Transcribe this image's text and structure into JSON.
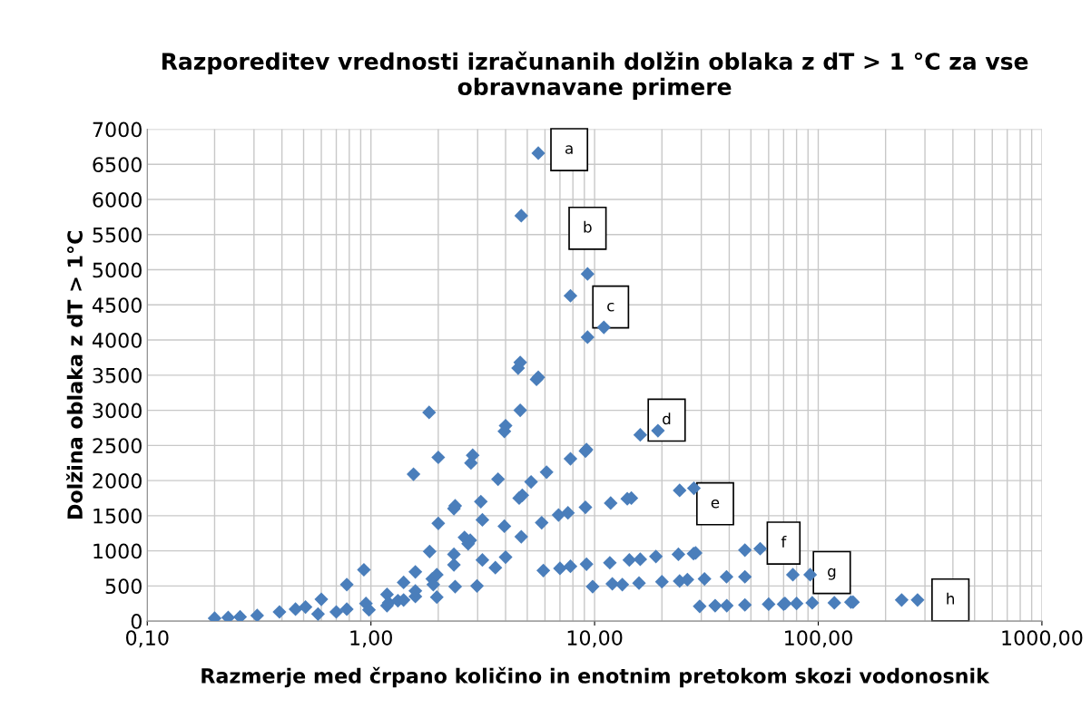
{
  "chart_data": {
    "type": "scatter",
    "title": "Razporeditev vrednosti izračunanih dolžin oblaka z dT > 1 °C za vse obravnavane primere",
    "xlabel": "Razmerje med črpano količino in enotnim pretokom skozi vodonosnik",
    "ylabel": "Dolžina oblaka z dT > 1°C",
    "log": "x",
    "grid": true,
    "marker": "diamond",
    "legend": false,
    "xlim": [
      0.1,
      1000
    ],
    "xticks": [
      {
        "value": 0.1,
        "label": "0,10"
      },
      {
        "value": 1,
        "label": "1,00"
      },
      {
        "value": 10,
        "label": "10,00"
      },
      {
        "value": 100,
        "label": "100,00"
      },
      {
        "value": 1000,
        "label": "1000,00"
      }
    ],
    "ylim": [
      0,
      7000
    ],
    "yticks": [
      0,
      500,
      1000,
      1500,
      2000,
      2500,
      3000,
      3500,
      4000,
      4500,
      5000,
      5500,
      6000,
      6500,
      7000
    ],
    "series": [
      {
        "color": "#4a7ebb",
        "x": [
          0.2,
          0.23,
          0.26,
          0.31,
          0.39,
          0.46,
          0.51,
          0.58,
          0.6,
          0.7,
          0.78,
          0.78,
          0.93,
          0.95,
          0.98,
          1.18,
          1.18,
          1.2,
          1.32,
          1.4,
          1.4,
          1.58,
          1.58,
          1.58,
          1.55,
          1.82,
          1.83,
          1.88,
          1.9,
          1.97,
          1.97,
          2.0,
          2.0,
          2.35,
          2.35,
          2.35,
          2.38,
          2.38,
          2.62,
          2.78,
          2.8,
          2.85,
          2.72,
          2.98,
          3.1,
          3.15,
          3.15,
          3.6,
          3.7,
          3.95,
          4.0,
          3.95,
          4.0,
          4.55,
          4.65,
          4.7,
          4.65,
          4.6,
          4.75,
          4.7,
          5.2,
          5.5,
          5.6,
          5.6,
          5.8,
          5.9,
          6.1,
          6.9,
          7.0,
          7.6,
          7.8,
          7.8,
          7.8,
          9.1,
          9.1,
          9.2,
          9.2,
          9.3,
          9.3,
          9.8,
          11,
          11.7,
          11.8,
          12,
          13.3,
          14,
          14.3,
          14.6,
          15.8,
          16,
          16,
          18.8,
          19.2,
          20,
          23.7,
          24,
          24,
          26,
          27.7,
          27.8,
          28.3,
          29.5,
          31,
          34.6,
          38.9,
          39,
          47,
          47,
          47,
          55,
          60,
          70,
          71,
          77,
          80,
          92,
          94,
          118,
          140,
          143,
          236,
          278
        ],
        "values": [
          40,
          50,
          60,
          80,
          130,
          170,
          200,
          100,
          310,
          130,
          170,
          520,
          730,
          250,
          160,
          380,
          220,
          260,
          290,
          300,
          550,
          350,
          430,
          700,
          2090,
          2970,
          990,
          600,
          520,
          340,
          660,
          1390,
          2330,
          800,
          950,
          1600,
          1640,
          490,
          1190,
          1150,
          2250,
          2360,
          1100,
          500,
          1700,
          1440,
          870,
          760,
          2020,
          2700,
          2780,
          1350,
          910,
          3600,
          3680,
          5770,
          3000,
          1750,
          1790,
          1200,
          1980,
          3440,
          3470,
          6660,
          1400,
          720,
          2120,
          1510,
          750,
          1540,
          780,
          2310,
          4630,
          2420,
          1620,
          2440,
          810,
          4940,
          4040,
          490,
          4180,
          830,
          1680,
          530,
          520,
          1740,
          870,
          1750,
          540,
          880,
          2650,
          920,
          2710,
          560,
          950,
          1860,
          570,
          590,
          960,
          1890,
          970,
          210,
          600,
          220,
          630,
          220,
          1010,
          630,
          230,
          1030,
          240,
          240,
          250,
          660,
          250,
          660,
          260,
          260,
          270,
          270,
          300,
          300
        ]
      }
    ],
    "annotations": [
      "a",
      "b",
      "c",
      "d",
      "e",
      "f",
      "g",
      "h"
    ]
  }
}
